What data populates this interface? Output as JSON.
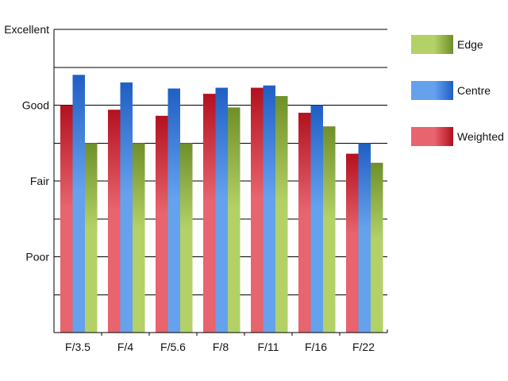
{
  "chart_data": {
    "type": "bar",
    "categories": [
      "F/3.5",
      "F/4",
      "F/5.6",
      "F/8",
      "F/11",
      "F/16",
      "F/22"
    ],
    "y_scale": {
      "min": 0,
      "max": 4,
      "tick_labels": [
        "Poor",
        "Fair",
        "Good",
        "Excellent"
      ],
      "tick_values": [
        1,
        2,
        3,
        4
      ],
      "minor_gridline_step": 0.5
    },
    "series": [
      {
        "name": "Weighted",
        "values": [
          3.0,
          2.94,
          2.86,
          3.15,
          3.23,
          2.9,
          2.36
        ],
        "colors": {
          "light": "#e8646e",
          "dark": "#b3111f"
        }
      },
      {
        "name": "Centre",
        "values": [
          3.4,
          3.3,
          3.22,
          3.23,
          3.26,
          3.0,
          2.5
        ],
        "colors": {
          "light": "#66a1ee",
          "dark": "#1f5fc4"
        }
      },
      {
        "name": "Edge",
        "values": [
          2.5,
          2.5,
          2.5,
          2.97,
          3.12,
          2.72,
          2.24
        ],
        "colors": {
          "light": "#b3d167",
          "dark": "#6f8f2a"
        }
      }
    ],
    "legend": {
      "placement": "right",
      "order": [
        "Edge",
        "Centre",
        "Weighted"
      ]
    },
    "grid": true
  }
}
